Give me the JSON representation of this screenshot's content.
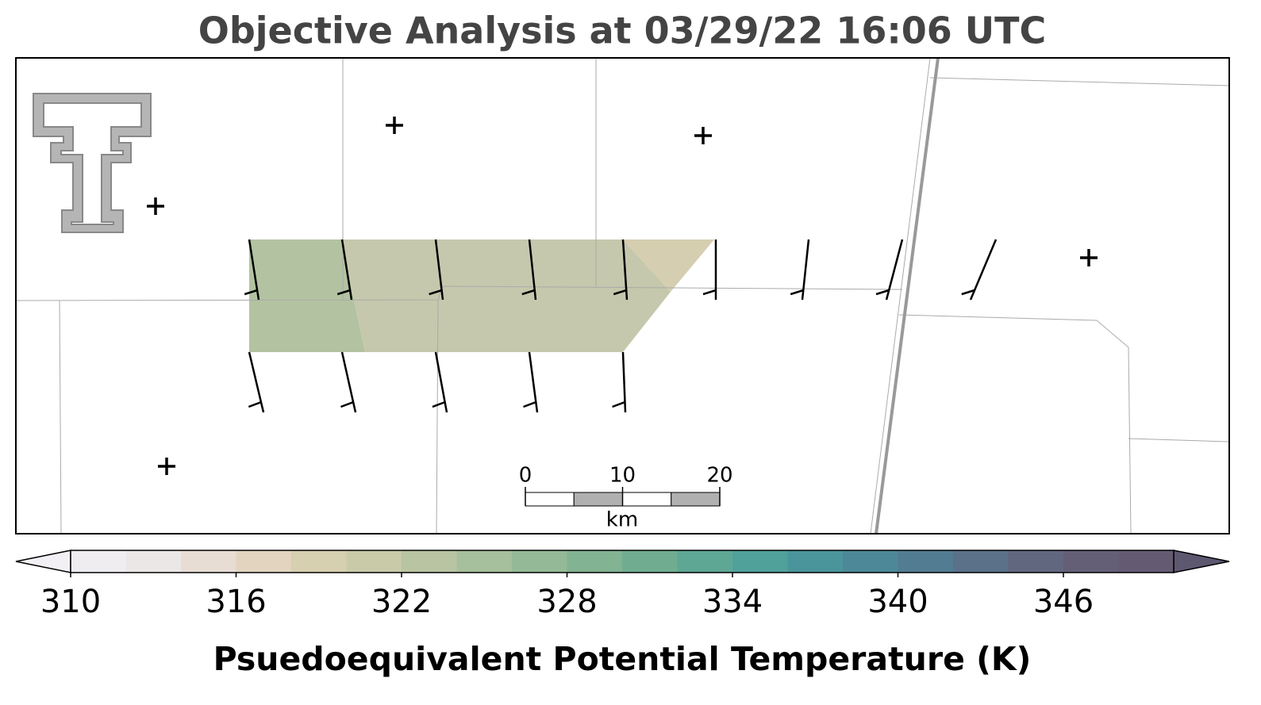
{
  "title": "Objective Analysis at 03/29/22 16:06 UTC",
  "scale_bar": {
    "lim": [
      0,
      20
    ],
    "ticks": [
      0,
      10,
      20
    ],
    "unit": "km"
  },
  "colorbar": {
    "label": "Psuedoequivalent Potential Temperature (K)",
    "lim": [
      310,
      350
    ],
    "ticks": [
      310,
      316,
      322,
      328,
      334,
      340,
      346
    ],
    "extend_colors": [
      "#f2f0f5",
      "#5e5770"
    ],
    "colors": [
      "#efedf0",
      "#ece7e7",
      "#e8ddd4",
      "#e2d4bf",
      "#d6cfb0",
      "#c9caa8",
      "#b8c4a2",
      "#a6bf9c",
      "#94b996",
      "#82b392",
      "#70ad90",
      "#5ea795",
      "#50a19a",
      "#4a959b",
      "#4d8898",
      "#527c91",
      "#5a7189",
      "#61677f",
      "#645f77",
      "#645b72"
    ]
  }
}
